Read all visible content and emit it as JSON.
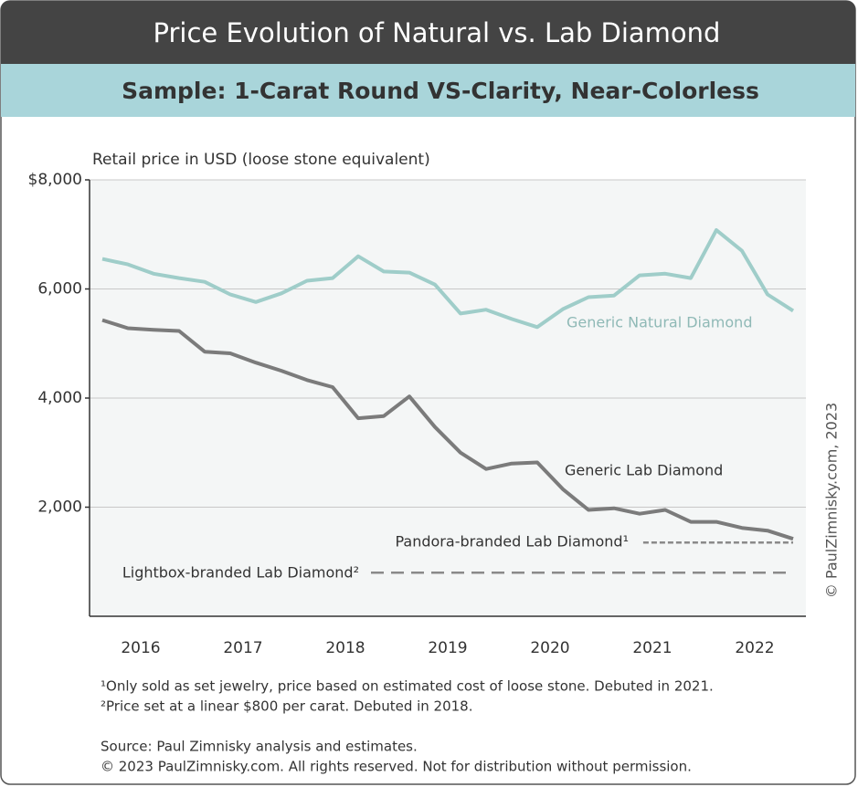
{
  "chart_data": {
    "type": "line",
    "title": "Price Evolution of Natural vs. Lab Diamond",
    "subtitle": "Sample: 1-Carat Round VS-Clarity, Near-Colorless",
    "y_label": "Retail price in USD (loose stone equivalent)",
    "x": [
      2016.125,
      2016.375,
      2016.625,
      2016.875,
      2017.125,
      2017.375,
      2017.625,
      2017.875,
      2018.125,
      2018.375,
      2018.625,
      2018.875,
      2019.125,
      2019.375,
      2019.625,
      2019.875,
      2020.125,
      2020.375,
      2020.625,
      2020.875,
      2021.125,
      2021.375,
      2021.625,
      2021.875,
      2022.125,
      2022.375,
      2022.625,
      2022.875
    ],
    "series": [
      {
        "name": "Generic Natural Diamond",
        "color": "#9fcdc9",
        "style": "solid",
        "values": [
          6550,
          6450,
          6280,
          6200,
          6130,
          5900,
          5760,
          5920,
          6150,
          6200,
          6600,
          6320,
          6300,
          6080,
          5550,
          5620,
          5450,
          5300,
          5630,
          5850,
          5880,
          6250,
          6280,
          6200,
          7080,
          6700,
          5900,
          5600
        ]
      },
      {
        "name": "Generic Lab Diamond",
        "color": "#7b7b7b",
        "style": "solid",
        "values": [
          5430,
          5280,
          5250,
          5230,
          4850,
          4820,
          4650,
          4500,
          4330,
          4200,
          3630,
          3670,
          4030,
          3470,
          3000,
          2700,
          2800,
          2820,
          2330,
          1950,
          1980,
          1880,
          1950,
          1730,
          1730,
          1620,
          1570,
          1420
        ]
      },
      {
        "name": "Pandora-branded Lab Diamond¹",
        "color": "#8a8a8a",
        "style": "dashed-fine",
        "x": [
          2021.41,
          2022.875
        ],
        "values": [
          1350,
          1350
        ]
      },
      {
        "name": "Lightbox-branded Lab Diamond²",
        "color": "#8a8a8a",
        "style": "dashed",
        "x": [
          2018.75,
          2022.875
        ],
        "values": [
          800,
          800
        ]
      }
    ],
    "xlim": [
      2016,
      2023
    ],
    "xticks": [
      {
        "value": 2016.5,
        "label": "2016"
      },
      {
        "value": 2017.5,
        "label": "2017"
      },
      {
        "value": 2018.5,
        "label": "2018"
      },
      {
        "value": 2019.5,
        "label": "2019"
      },
      {
        "value": 2020.5,
        "label": "2020"
      },
      {
        "value": 2021.5,
        "label": "2021"
      },
      {
        "value": 2022.5,
        "label": "2022"
      }
    ],
    "ylim": [
      0,
      8000
    ],
    "yticks": [
      {
        "value": 2000,
        "label": "2,000"
      },
      {
        "value": 4000,
        "label": "4,000"
      },
      {
        "value": 6000,
        "label": "6,000"
      },
      {
        "value": 8000,
        "label": "$8,000"
      }
    ],
    "grid": true,
    "watermark": "© PaulZimnisky.com, 2023",
    "footnotes": [
      "¹Only sold as set jewelry, price based on estimated cost of loose stone. Debuted in 2021.",
      "²Price set at a linear $800 per carat. Debuted in 2018."
    ],
    "source": [
      "Source: Paul Zimnisky analysis and estimates.",
      "© 2023 PaulZimnisky.com. All rights reserved. Not for distribution without permission."
    ]
  }
}
